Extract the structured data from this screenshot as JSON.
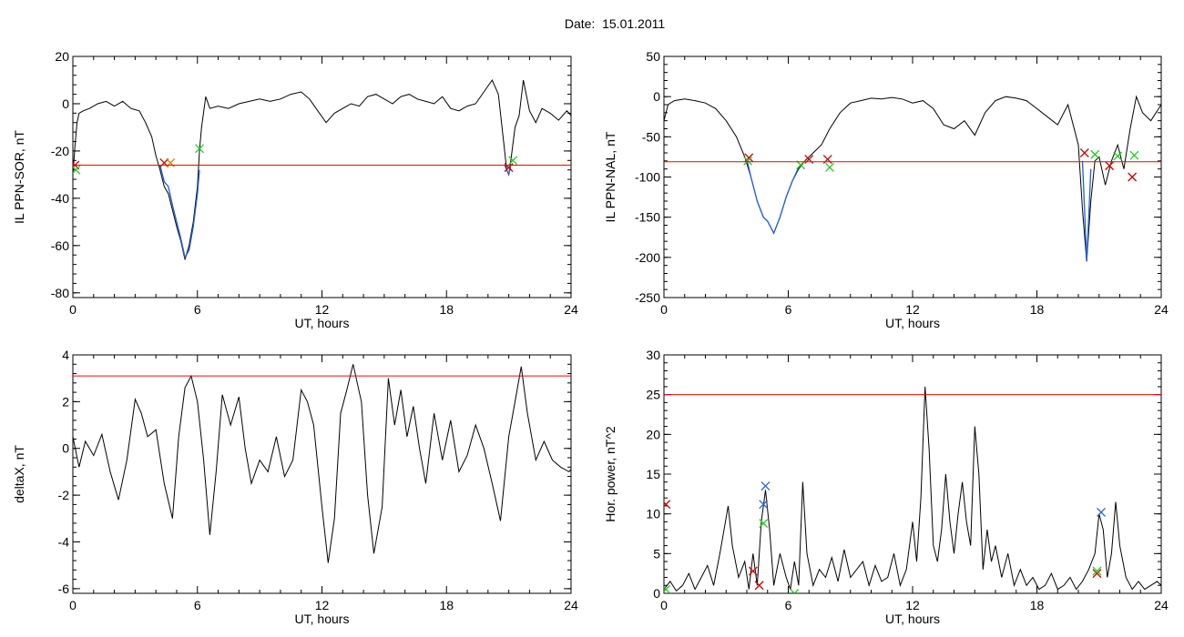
{
  "header": {
    "date_label": "Date:",
    "date_value": "15.01.2011"
  },
  "colors": {
    "trace": "#000000",
    "threshold": "#ff0000",
    "segment": "#1f5fd6",
    "marker_red": "#cc0000",
    "marker_green": "#22cc22",
    "marker_blue": "#2266cc",
    "marker_orange": "#e07a00"
  },
  "chart_data": [
    {
      "type": "line",
      "id": "sor",
      "xlabel": "UT, hours",
      "ylabel": "IL PPN-SOR, nT",
      "xlim": [
        0,
        24
      ],
      "ylim": [
        -82,
        20
      ],
      "xticks": [
        0,
        6,
        12,
        18,
        24
      ],
      "yticks": [
        20,
        0,
        -20,
        -40,
        -60,
        -80
      ],
      "threshold": -26,
      "series": [
        {
          "x": [
            0,
            0.1,
            0.2,
            0.3,
            0.5,
            0.8,
            1.2,
            1.6,
            2.0,
            2.4,
            2.8,
            3.2,
            3.5,
            3.8,
            4.0,
            4.2,
            4.4,
            4.6,
            4.8,
            5.0,
            5.2,
            5.4,
            5.6,
            5.8,
            6.0,
            6.1,
            6.2,
            6.4,
            6.6,
            7.0,
            7.5,
            8.0,
            8.5,
            9.0,
            9.5,
            10.0,
            10.5,
            11.0,
            11.4,
            11.8,
            12.2,
            12.6,
            13.0,
            13.4,
            13.8,
            14.2,
            14.6,
            15.0,
            15.4,
            15.8,
            16.2,
            16.6,
            17.0,
            17.4,
            17.8,
            18.2,
            18.6,
            19.0,
            19.4,
            19.8,
            20.2,
            20.5,
            20.8,
            20.9,
            21.0,
            21.1,
            21.3,
            21.5,
            21.7,
            22.0,
            22.3,
            22.6,
            23.0,
            23.4,
            23.8,
            24.0
          ],
          "y": [
            -30,
            -18,
            -8,
            -4,
            -3,
            -2,
            0,
            1,
            -1,
            1,
            -2,
            -3,
            -8,
            -14,
            -22,
            -28,
            -35,
            -38,
            -45,
            -52,
            -58,
            -66,
            -60,
            -50,
            -35,
            -20,
            -10,
            3,
            -2,
            -1,
            -2,
            0,
            1,
            2,
            1,
            2,
            4,
            5,
            2,
            -3,
            -8,
            -4,
            -2,
            0,
            -1,
            3,
            4,
            2,
            0,
            3,
            4,
            2,
            1,
            0,
            3,
            -2,
            -3,
            -1,
            0,
            5,
            10,
            4,
            -20,
            -28,
            -30,
            -24,
            -10,
            -5,
            10,
            -3,
            -8,
            -2,
            -4,
            -7,
            -3,
            -5
          ]
        }
      ],
      "segments": [
        {
          "x": [
            4.2,
            4.4,
            4.6,
            4.8,
            5.0,
            5.2,
            5.4,
            5.6,
            5.8,
            6.0,
            6.1
          ],
          "y": [
            -26,
            -33,
            -35,
            -43,
            -50,
            -57,
            -65,
            -62,
            -52,
            -38,
            -28
          ]
        },
        {
          "x": [
            20.8,
            20.9,
            21.0,
            21.1
          ],
          "y": [
            -26,
            -28,
            -30,
            -26
          ]
        }
      ],
      "markers": [
        {
          "x": 0.1,
          "y": -26,
          "color": "red"
        },
        {
          "x": 0.15,
          "y": -28,
          "color": "green"
        },
        {
          "x": 4.4,
          "y": -25,
          "color": "red"
        },
        {
          "x": 4.7,
          "y": -25,
          "color": "orange"
        },
        {
          "x": 6.1,
          "y": -19,
          "color": "green"
        },
        {
          "x": 21.0,
          "y": -27,
          "color": "red"
        },
        {
          "x": 21.2,
          "y": -24,
          "color": "green"
        }
      ]
    },
    {
      "type": "line",
      "id": "nal",
      "xlabel": "UT, hours",
      "ylabel": "IL PPN-NAL, nT",
      "xlim": [
        0,
        24
      ],
      "ylim": [
        -250,
        50
      ],
      "xticks": [
        0,
        6,
        12,
        18,
        24
      ],
      "yticks": [
        50,
        0,
        -50,
        -100,
        -150,
        -200,
        -250
      ],
      "threshold": -81,
      "series": [
        {
          "x": [
            0,
            0.2,
            0.5,
            1.0,
            1.5,
            2.0,
            2.5,
            3.0,
            3.5,
            3.9,
            4.2,
            4.5,
            4.8,
            5.0,
            5.3,
            5.6,
            5.9,
            6.2,
            6.5,
            6.8,
            7.2,
            7.6,
            8.0,
            8.5,
            9.0,
            9.5,
            10.0,
            10.5,
            11.0,
            11.5,
            12.0,
            12.5,
            13.0,
            13.5,
            14.0,
            14.5,
            15.0,
            15.5,
            16.0,
            16.5,
            17.0,
            17.5,
            18.0,
            18.5,
            19.0,
            19.5,
            20.0,
            20.2,
            20.4,
            20.6,
            20.8,
            21.0,
            21.3,
            21.6,
            21.9,
            22.2,
            22.5,
            22.8,
            23.1,
            23.5,
            24.0
          ],
          "y": [
            -30,
            -10,
            -5,
            -3,
            -5,
            -8,
            -15,
            -30,
            -50,
            -75,
            -100,
            -130,
            -150,
            -155,
            -170,
            -150,
            -125,
            -105,
            -90,
            -80,
            -70,
            -60,
            -40,
            -20,
            -8,
            -5,
            -2,
            -3,
            -1,
            -3,
            -8,
            -5,
            -15,
            -35,
            -40,
            -30,
            -48,
            -20,
            -5,
            0,
            -2,
            -5,
            -15,
            -25,
            -35,
            -10,
            -60,
            -140,
            -205,
            -130,
            -80,
            -75,
            -110,
            -80,
            -60,
            -90,
            -40,
            0,
            -20,
            -30,
            -10
          ]
        }
      ],
      "segments": [
        {
          "x": [
            4.0,
            4.2,
            4.5,
            4.8,
            5.0,
            5.3,
            5.6,
            5.9,
            6.2,
            6.5
          ],
          "y": [
            -78,
            -100,
            -130,
            -150,
            -155,
            -170,
            -150,
            -125,
            -105,
            -88
          ]
        },
        {
          "x": [
            20.2,
            20.3,
            20.4,
            20.5,
            20.6
          ],
          "y": [
            -80,
            -140,
            -205,
            -150,
            -90
          ]
        }
      ],
      "markers": [
        {
          "x": 4.1,
          "y": -76,
          "color": "red"
        },
        {
          "x": 4.05,
          "y": -80,
          "color": "green"
        },
        {
          "x": 7.0,
          "y": -78,
          "color": "red"
        },
        {
          "x": 6.6,
          "y": -85,
          "color": "green"
        },
        {
          "x": 7.9,
          "y": -78,
          "color": "red"
        },
        {
          "x": 8.0,
          "y": -88,
          "color": "green"
        },
        {
          "x": 20.3,
          "y": -70,
          "color": "red"
        },
        {
          "x": 20.8,
          "y": -72,
          "color": "green"
        },
        {
          "x": 21.5,
          "y": -86,
          "color": "red"
        },
        {
          "x": 21.9,
          "y": -74,
          "color": "green"
        },
        {
          "x": 22.6,
          "y": -100,
          "color": "red"
        },
        {
          "x": 22.7,
          "y": -73,
          "color": "green"
        }
      ]
    },
    {
      "type": "line",
      "id": "deltax",
      "xlabel": "UT, hours",
      "ylabel": "deltaX, nT",
      "xlim": [
        0,
        24
      ],
      "ylim": [
        -6.2,
        4
      ],
      "xticks": [
        0,
        6,
        12,
        18,
        24
      ],
      "yticks": [
        4,
        2,
        0,
        -2,
        -4,
        -6
      ],
      "threshold": 3.1,
      "series": [
        {
          "x": [
            0,
            0.3,
            0.6,
            1.0,
            1.4,
            1.8,
            2.2,
            2.6,
            3.0,
            3.3,
            3.6,
            4.0,
            4.4,
            4.8,
            5.1,
            5.4,
            5.7,
            6.0,
            6.3,
            6.6,
            6.9,
            7.2,
            7.6,
            8.0,
            8.3,
            8.6,
            9.0,
            9.4,
            9.8,
            10.2,
            10.6,
            11.0,
            11.3,
            11.6,
            12.0,
            12.3,
            12.6,
            12.9,
            13.2,
            13.5,
            13.9,
            14.2,
            14.5,
            14.9,
            15.2,
            15.5,
            15.8,
            16.1,
            16.4,
            16.7,
            17.0,
            17.4,
            17.8,
            18.2,
            18.6,
            19.0,
            19.4,
            19.8,
            20.2,
            20.6,
            21.0,
            21.3,
            21.6,
            21.9,
            22.3,
            22.7,
            23.1,
            23.5,
            23.9,
            24.0
          ],
          "y": [
            0.5,
            -0.8,
            0.3,
            -0.3,
            0.6,
            -1.0,
            -2.2,
            -0.5,
            2.1,
            1.5,
            0.5,
            0.8,
            -1.5,
            -3.0,
            0.5,
            2.6,
            3.1,
            2.0,
            -0.5,
            -3.7,
            -1.0,
            2.3,
            1.0,
            2.2,
            0.0,
            -1.5,
            -0.5,
            -1.0,
            0.5,
            -1.2,
            -0.5,
            2.5,
            2.0,
            1.0,
            -2.5,
            -4.9,
            -3.0,
            1.5,
            2.5,
            3.6,
            2.0,
            -2.0,
            -4.5,
            -2.5,
            3.0,
            1.0,
            2.5,
            0.5,
            1.8,
            0.0,
            -1.5,
            1.5,
            -0.5,
            1.2,
            -1.0,
            -0.3,
            1.0,
            0.0,
            -1.5,
            -3.1,
            0.5,
            2.0,
            3.5,
            1.5,
            -0.5,
            0.3,
            -0.5,
            -0.8,
            -1.0,
            -0.9
          ]
        }
      ]
    },
    {
      "type": "line",
      "id": "hpower",
      "xlabel": "UT, hours",
      "ylabel": "Hor. power, nT^2",
      "xlim": [
        0,
        24
      ],
      "ylim": [
        0,
        30
      ],
      "xticks": [
        0,
        6,
        12,
        18,
        24
      ],
      "yticks": [
        30,
        25,
        20,
        15,
        10,
        5,
        0
      ],
      "threshold": 25,
      "series": [
        {
          "x": [
            0,
            0.3,
            0.6,
            0.9,
            1.2,
            1.5,
            1.8,
            2.1,
            2.4,
            2.7,
            2.9,
            3.1,
            3.3,
            3.6,
            3.9,
            4.1,
            4.3,
            4.5,
            4.7,
            4.9,
            5.1,
            5.3,
            5.6,
            5.9,
            6.1,
            6.3,
            6.5,
            6.7,
            6.9,
            7.2,
            7.5,
            7.8,
            8.1,
            8.4,
            8.7,
            9.0,
            9.3,
            9.6,
            9.9,
            10.2,
            10.5,
            10.8,
            11.1,
            11.4,
            11.7,
            12.0,
            12.2,
            12.4,
            12.6,
            12.8,
            13.0,
            13.2,
            13.4,
            13.6,
            13.8,
            14.0,
            14.2,
            14.4,
            14.6,
            14.8,
            15.0,
            15.2,
            15.4,
            15.6,
            15.8,
            16.0,
            16.3,
            16.6,
            16.9,
            17.2,
            17.5,
            17.8,
            18.1,
            18.4,
            18.7,
            19.0,
            19.3,
            19.6,
            19.9,
            20.2,
            20.5,
            20.8,
            21.0,
            21.2,
            21.4,
            21.6,
            21.8,
            22.0,
            22.3,
            22.6,
            22.9,
            23.2,
            23.5,
            23.8,
            24.0
          ],
          "y": [
            0.5,
            1.5,
            0.3,
            1.0,
            2.5,
            0.5,
            2.0,
            3.5,
            1.0,
            5.0,
            8.0,
            11.0,
            6.0,
            2.0,
            4.0,
            0.5,
            5.0,
            1.0,
            9.0,
            13.0,
            8.0,
            1.0,
            5.0,
            2.0,
            0.5,
            4.0,
            1.0,
            14.0,
            5.0,
            1.0,
            3.0,
            2.0,
            4.5,
            1.5,
            5.5,
            2.0,
            3.0,
            4.0,
            1.0,
            3.5,
            1.5,
            2.0,
            5.0,
            1.0,
            3.0,
            9.0,
            4.0,
            12.0,
            26.0,
            18.0,
            6.0,
            4.0,
            8.0,
            15.0,
            9.0,
            5.0,
            10.0,
            14.0,
            9.0,
            6.0,
            21.0,
            15.0,
            3.0,
            8.0,
            4.0,
            6.0,
            2.0,
            5.0,
            1.0,
            3.0,
            1.0,
            2.0,
            0.5,
            1.0,
            2.5,
            0.5,
            1.0,
            2.0,
            0.5,
            1.5,
            3.0,
            5.0,
            10.0,
            8.0,
            2.0,
            5.0,
            11.5,
            6.0,
            2.0,
            0.5,
            1.5,
            0.5,
            1.0,
            1.5,
            1.0
          ]
        }
      ],
      "markers": [
        {
          "x": 0.1,
          "y": 11.2,
          "color": "red"
        },
        {
          "x": 0.1,
          "y": 0.5,
          "color": "green"
        },
        {
          "x": 4.3,
          "y": 2.8,
          "color": "red"
        },
        {
          "x": 4.6,
          "y": 1.0,
          "color": "red"
        },
        {
          "x": 4.8,
          "y": 11.2,
          "color": "blue"
        },
        {
          "x": 4.9,
          "y": 13.5,
          "color": "blue"
        },
        {
          "x": 4.8,
          "y": 8.8,
          "color": "green"
        },
        {
          "x": 6.3,
          "y": 0.0,
          "color": "green"
        },
        {
          "x": 20.9,
          "y": 2.5,
          "color": "red"
        },
        {
          "x": 21.1,
          "y": 10.2,
          "color": "blue"
        },
        {
          "x": 20.9,
          "y": 2.8,
          "color": "green"
        }
      ]
    }
  ]
}
